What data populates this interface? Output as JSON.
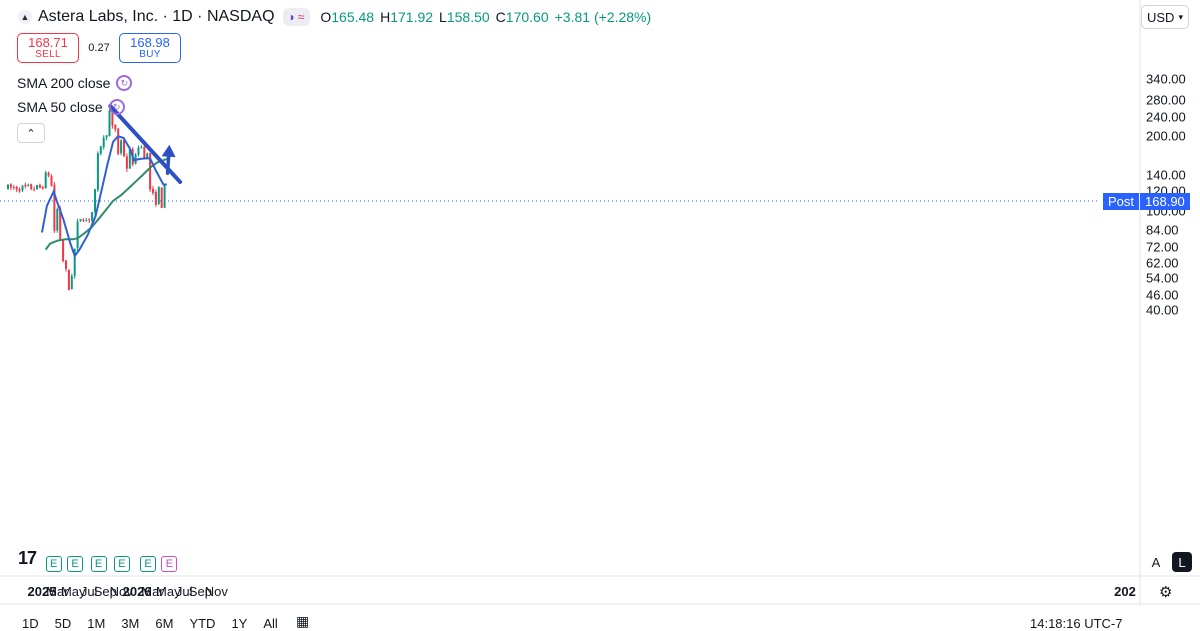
{
  "header": {
    "symbol_title": "Astera Labs, Inc. · 1D · NASDAQ",
    "ohlc": {
      "open_label": "O",
      "open": "165.48",
      "high_label": "H",
      "high": "171.92",
      "low_label": "L",
      "low": "158.50",
      "close_label": "C",
      "close": "170.60",
      "change": "+3.81 (+2.28%)"
    }
  },
  "trade": {
    "sell_price": "168.71",
    "sell_label": "SELL",
    "spread": "0.27",
    "buy_price": "168.98",
    "buy_label": "BUY"
  },
  "indicators": [
    "SMA 200 close",
    "SMA 50 close"
  ],
  "currency": "USD",
  "post_label": "Post",
  "post_price": "168.90",
  "tv_logo": "17",
  "scale_buttons": {
    "a": "A",
    "l": "L"
  },
  "bottom": {
    "ranges": [
      "1D",
      "5D",
      "1M",
      "3M",
      "6M",
      "YTD",
      "1Y",
      "All"
    ],
    "clock": "14:18:16 UTC-7"
  },
  "colors": {
    "up": "#089981",
    "down": "#f23645",
    "sma50": "#2f5fd6",
    "sma200": "#2e8b6e",
    "trendline": "#2d4fc4",
    "accent": "#2962ff"
  },
  "chart_data": {
    "type": "candlestick",
    "scale": "log",
    "ylim": [
      36,
      360
    ],
    "y_ticks": [
      "340.00",
      "280.00",
      "240.00",
      "200.00",
      "140.00",
      "120.00",
      "100.00",
      "84.00",
      "72.00",
      "62.00",
      "54.00",
      "46.00",
      "40.00"
    ],
    "x_ticks": [
      "2025",
      "Mar",
      "May",
      "Jul",
      "Sep",
      "Nov",
      "2026",
      "Mar",
      "May",
      "Jul",
      "Sep",
      "Nov",
      "202"
    ],
    "earnings_markers": [
      {
        "x": "2025-02-15",
        "label": "E"
      },
      {
        "x": "2025-05-08",
        "label": "E"
      },
      {
        "x": "2025-08-06",
        "label": "E"
      },
      {
        "x": "2025-11-04",
        "label": "E"
      },
      {
        "x": "2026-02-12",
        "label": "E"
      },
      {
        "x": "2026-05-05",
        "label": "E",
        "upcoming": true
      }
    ],
    "price_path": [
      [
        "2025-01-01",
        124
      ],
      [
        "2025-01-22",
        146
      ],
      [
        "2025-02-06",
        128
      ],
      [
        "2025-02-18",
        82
      ],
      [
        "2025-02-26",
        108
      ],
      [
        "2025-03-15",
        70
      ],
      [
        "2025-03-25",
        62
      ],
      [
        "2025-04-05",
        56
      ],
      [
        "2025-04-09",
        46
      ],
      [
        "2025-04-22",
        52
      ],
      [
        "2025-05-02",
        64
      ],
      [
        "2025-05-08",
        72
      ],
      [
        "2025-05-17",
        88
      ],
      [
        "2025-06-01",
        96
      ],
      [
        "2025-06-20",
        92
      ],
      [
        "2025-07-10",
        95
      ],
      [
        "2025-07-24",
        120
      ],
      [
        "2025-08-01",
        148
      ],
      [
        "2025-08-06",
        182
      ],
      [
        "2025-08-20",
        188
      ],
      [
        "2025-09-05",
        205
      ],
      [
        "2025-09-20",
        260
      ],
      [
        "2025-09-27",
        215
      ],
      [
        "2025-10-08",
        220
      ],
      [
        "2025-10-20",
        170
      ],
      [
        "2025-11-05",
        200
      ],
      [
        "2025-11-18",
        140
      ],
      [
        "2025-12-05",
        175
      ],
      [
        "2025-12-20",
        150
      ],
      [
        "2026-01-05",
        185
      ],
      [
        "2026-01-25",
        178
      ],
      [
        "2026-02-06",
        150
      ],
      [
        "2026-02-12",
        188
      ],
      [
        "2026-02-16",
        125
      ],
      [
        "2026-03-01",
        118
      ],
      [
        "2026-03-10",
        105
      ],
      [
        "2026-03-28",
        125
      ],
      [
        "2026-04-09",
        98
      ],
      [
        "2026-04-18",
        128
      ],
      [
        "2026-04-23",
        150
      ],
      [
        "2026-04-26",
        170.6
      ]
    ],
    "series": [
      {
        "name": "SMA 50 close",
        "values": [
          [
            "2025-01-01",
            82
          ],
          [
            "2025-01-20",
            105
          ],
          [
            "2025-02-15",
            120
          ],
          [
            "2025-03-01",
            108
          ],
          [
            "2025-03-25",
            92
          ],
          [
            "2025-04-20",
            74
          ],
          [
            "2025-05-07",
            66
          ],
          [
            "2025-05-25",
            70
          ],
          [
            "2025-06-25",
            80
          ],
          [
            "2025-07-25",
            95
          ],
          [
            "2025-08-15",
            118
          ],
          [
            "2025-09-10",
            155
          ],
          [
            "2025-10-01",
            190
          ],
          [
            "2025-10-20",
            200
          ],
          [
            "2025-11-10",
            197
          ],
          [
            "2025-12-05",
            178
          ],
          [
            "2025-12-20",
            160
          ],
          [
            "2026-01-10",
            162
          ],
          [
            "2026-02-01",
            163
          ],
          [
            "2026-02-20",
            163
          ],
          [
            "2026-03-15",
            145
          ],
          [
            "2026-04-12",
            128
          ],
          [
            "2026-04-25",
            128
          ]
        ]
      },
      {
        "name": "SMA 200 close",
        "values": [
          [
            "2025-01-15",
            70
          ],
          [
            "2025-02-01",
            74
          ],
          [
            "2025-03-01",
            76
          ],
          [
            "2025-04-01",
            77
          ],
          [
            "2025-05-01",
            77
          ],
          [
            "2025-05-20",
            78
          ],
          [
            "2025-06-10",
            81
          ],
          [
            "2025-07-10",
            86
          ],
          [
            "2025-08-10",
            94
          ],
          [
            "2025-09-10",
            103
          ],
          [
            "2025-10-01",
            110
          ],
          [
            "2025-11-01",
            116
          ],
          [
            "2025-12-01",
            124
          ],
          [
            "2026-01-01",
            133
          ],
          [
            "2026-02-01",
            143
          ],
          [
            "2026-02-25",
            151
          ],
          [
            "2026-03-20",
            157
          ],
          [
            "2026-04-10",
            160
          ],
          [
            "2026-04-25",
            162
          ]
        ]
      }
    ],
    "annotations": {
      "trendline": [
        [
          "2025-09-20",
          265
        ],
        [
          "2026-06-15",
          131
        ]
      ],
      "arrow": [
        [
          "2026-04-28",
          142
        ],
        [
          "2026-05-05",
          185
        ]
      ],
      "post_market_price": 168.9
    }
  }
}
